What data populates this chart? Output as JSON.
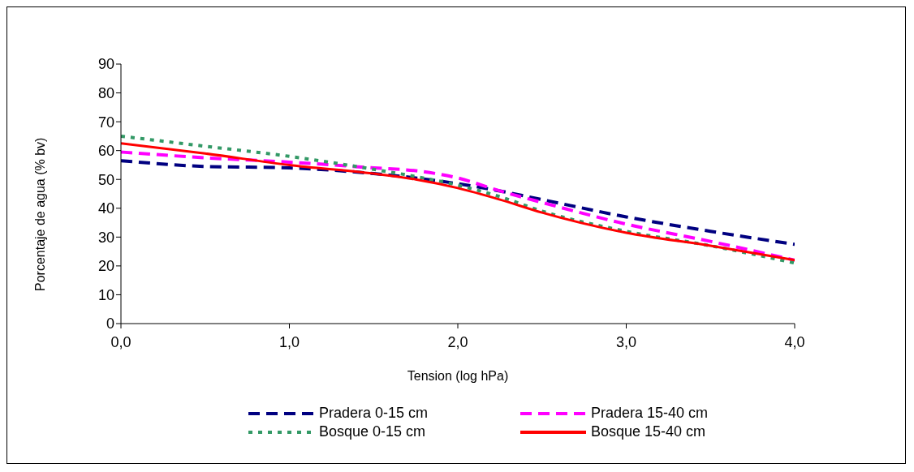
{
  "chart_data": {
    "type": "line",
    "xlabel": "Tension (log hPa)",
    "ylabel": "Porcentaje de agua (% bv)",
    "x": [
      0,
      0.5,
      1,
      1.5,
      1.75,
      2,
      2.25,
      2.5,
      3,
      3.5,
      4
    ],
    "series": [
      {
        "name": "Pradera 0-15 cm",
        "color": "#000080",
        "line_style": "dashed",
        "values": [
          56.5,
          54.5,
          54,
          52,
          50.5,
          48.5,
          46,
          43,
          37,
          32,
          27.5
        ]
      },
      {
        "name": "Pradera 15-40 cm",
        "color": "#ff00ff",
        "line_style": "dashed",
        "values": [
          59.5,
          57.5,
          56,
          54,
          53,
          50.5,
          46,
          42,
          34.5,
          28.5,
          22
        ]
      },
      {
        "name": "Bosque 0-15 cm",
        "color": "#339966",
        "line_style": "dotted",
        "values": [
          65,
          61.5,
          58,
          53.5,
          51,
          48,
          44,
          39,
          32,
          27,
          21
        ]
      },
      {
        "name": "Bosque 15-40 cm",
        "color": "#ff0000",
        "line_style": "solid",
        "values": [
          62.5,
          59,
          55,
          52,
          50,
          47,
          43,
          38.5,
          31.5,
          27,
          22
        ]
      }
    ],
    "xlim": [
      0,
      4
    ],
    "xticks": [
      {
        "value": 0,
        "label": "0,0"
      },
      {
        "value": 1,
        "label": "1,0"
      },
      {
        "value": 2,
        "label": "2,0"
      },
      {
        "value": 3,
        "label": "3,0"
      },
      {
        "value": 4,
        "label": "4,0"
      }
    ],
    "ylim": [
      0,
      90
    ],
    "yticks": [
      0,
      10,
      20,
      30,
      40,
      50,
      60,
      70,
      80,
      90
    ],
    "grid": false,
    "legend": "bottom",
    "marker": "none"
  }
}
